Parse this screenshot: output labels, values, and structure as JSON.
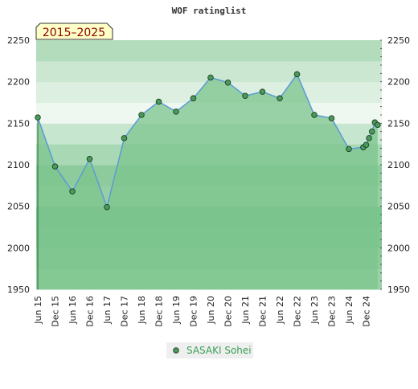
{
  "chart_data": {
    "type": "area",
    "title": "WOF ratinglist",
    "badge": "2015–2025",
    "xlabel": "",
    "ylabel": "",
    "ylim": [
      1950,
      2250
    ],
    "y_ticks": [
      1950,
      2000,
      2050,
      2100,
      2150,
      2200,
      2250
    ],
    "x_ticks": [
      "Jun 15",
      "Dec 15",
      "Jun 16",
      "Dec 16",
      "Jun 17",
      "Dec 17",
      "Jun 18",
      "Dec 18",
      "Jun 19",
      "Dec 19",
      "Jun 20",
      "Dec 20",
      "Jun 21",
      "Dec 21",
      "Jun 22",
      "Dec 22",
      "Jun 23",
      "Dec 23",
      "Jun 24",
      "Dec 24"
    ],
    "grid": true,
    "legend_position": "bottom-center",
    "series": [
      {
        "name": "SASAKI Sohei",
        "color": "#5b9bd5",
        "marker_color": "#4a9a5a",
        "fill_color": "#7cc48e",
        "points": [
          {
            "x": "Jun 15",
            "y": 2157
          },
          {
            "x": "Dec 15",
            "y": 2098
          },
          {
            "x": "Jun 16",
            "y": 2068
          },
          {
            "x": "Dec 16",
            "y": 2107
          },
          {
            "x": "Jun 17",
            "y": 2049
          },
          {
            "x": "Dec 17",
            "y": 2132
          },
          {
            "x": "Jun 18",
            "y": 2160
          },
          {
            "x": "Dec 18",
            "y": 2176
          },
          {
            "x": "Jun 19",
            "y": 2164
          },
          {
            "x": "Dec 19",
            "y": 2180
          },
          {
            "x": "Jun 20",
            "y": 2205
          },
          {
            "x": "Dec 20",
            "y": 2199
          },
          {
            "x": "Jun 21",
            "y": 2183
          },
          {
            "x": "Dec 21",
            "y": 2188
          },
          {
            "x": "Jun 22",
            "y": 2180
          },
          {
            "x": "Dec 22",
            "y": 2209
          },
          {
            "x": "Jun 23",
            "y": 2160
          },
          {
            "x": "Dec 23",
            "y": 2156
          },
          {
            "x": "Jun 24",
            "y": 2119
          },
          {
            "x": "Nov 24",
            "y": 2121
          },
          {
            "x": "Dec 24",
            "y": 2124
          },
          {
            "x": "Jan 25",
            "y": 2132
          },
          {
            "x": "Feb 25",
            "y": 2140
          },
          {
            "x": "Mar 25",
            "y": 2151
          },
          {
            "x": "Apr 25",
            "y": 2148
          }
        ]
      }
    ]
  }
}
